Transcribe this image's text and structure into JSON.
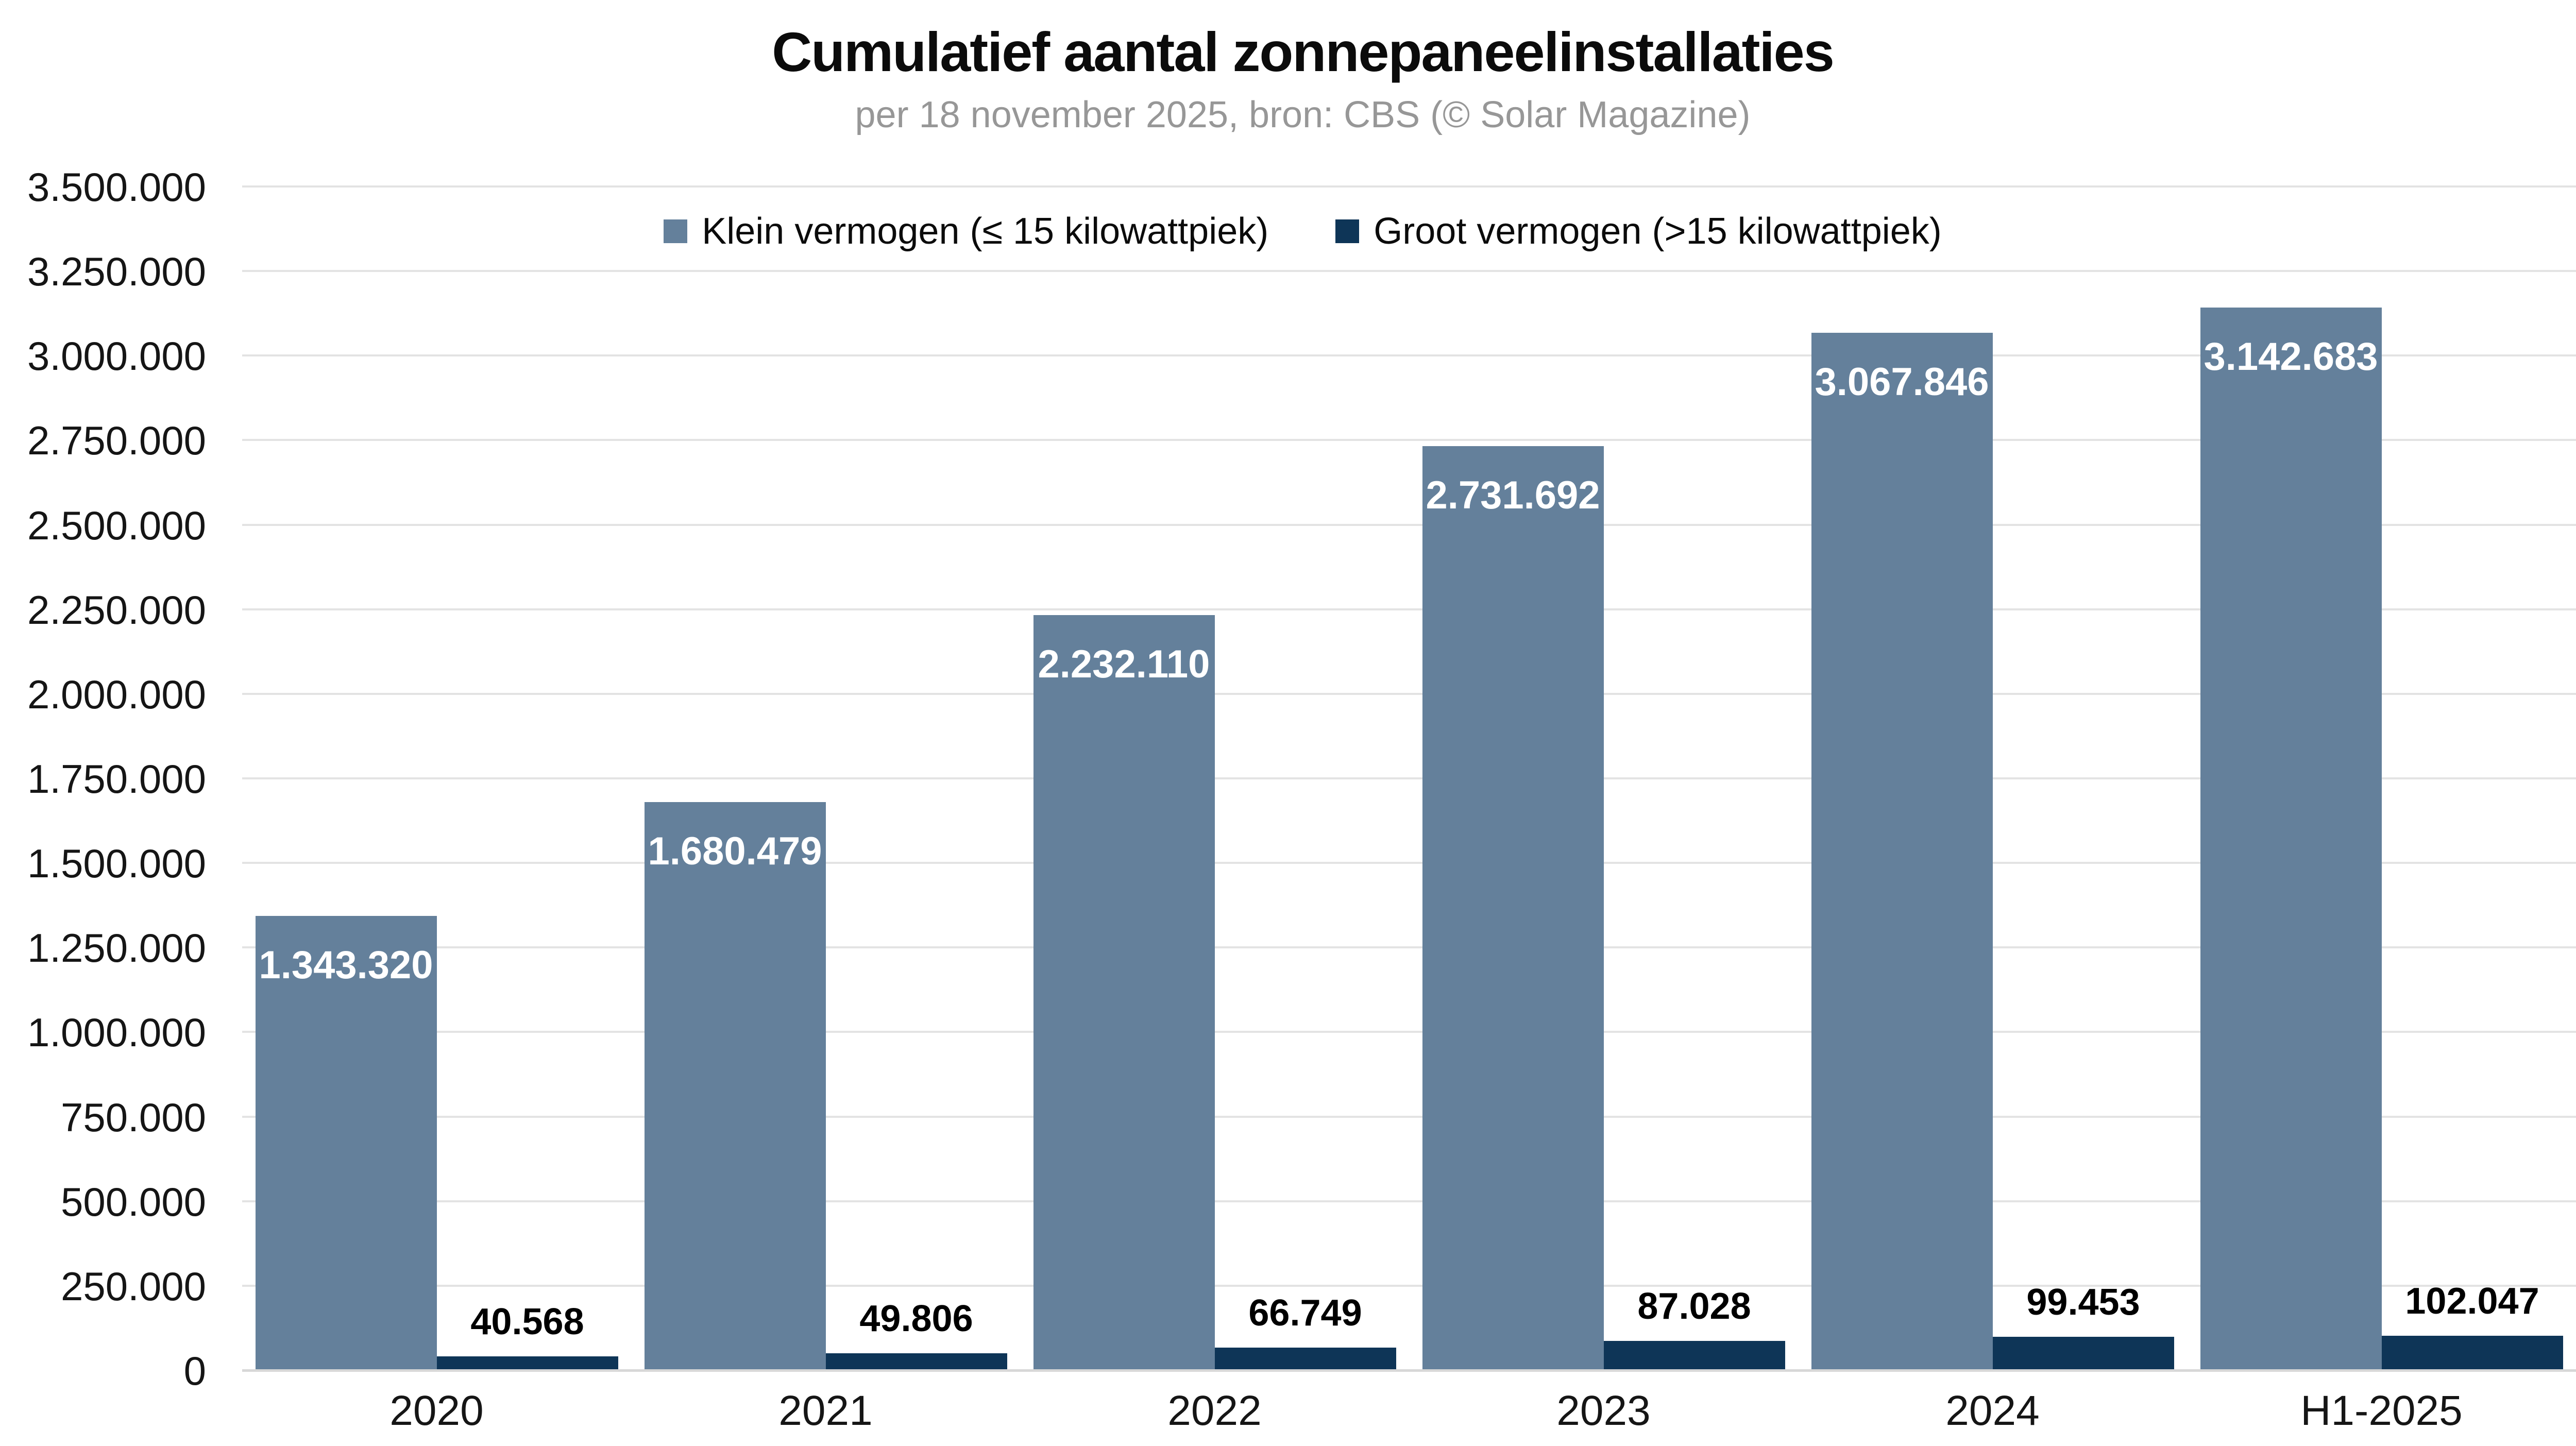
{
  "chart_data": {
    "type": "bar",
    "title": "Cumulatief aantal zonnepaneelinstallaties",
    "subtitle": "per 18 november 2025, bron: CBS (© Solar Magazine)",
    "categories": [
      "2020",
      "2021",
      "2022",
      "2023",
      "2024",
      "H1-2025"
    ],
    "series": [
      {
        "name": "Klein vermogen (≤ 15 kilowattpiek)",
        "color": "#64809b",
        "values": [
          1343320,
          1680479,
          2232110,
          2731692,
          3067846,
          3142683
        ],
        "labels": [
          "1.343.320",
          "1.680.479",
          "2.232.110",
          "2.731.692",
          "3.067.846",
          "3.142.683"
        ],
        "label_color": "#ffffff",
        "label_position": "inside-top"
      },
      {
        "name": "Groot vermogen (>15 kilowattpiek)",
        "color": "#0e3557",
        "values": [
          40568,
          49806,
          66749,
          87028,
          99453,
          102047
        ],
        "labels": [
          "40.568",
          "49.806",
          "66.749",
          "87.028",
          "99.453",
          "102.047"
        ],
        "label_color": "#000000",
        "label_position": "above"
      }
    ],
    "y_axis": {
      "min": 0,
      "max": 3500000,
      "tick_step": 250000,
      "tick_labels": [
        "0",
        "250.000",
        "500.000",
        "750.000",
        "1.000.000",
        "1.250.000",
        "1.500.000",
        "1.750.000",
        "2.000.000",
        "2.250.000",
        "2.500.000",
        "2.750.000",
        "3.000.000",
        "3.250.000",
        "3.500.000"
      ]
    },
    "grid": "horizontal",
    "legend_position": "top-center",
    "colors": {
      "background": "#ffffff",
      "gridline": "#e3e3e3",
      "baseline": "#d7d7d7",
      "title": "#0b0b0b",
      "subtitle": "#979797",
      "axis_text": "#151515"
    }
  }
}
